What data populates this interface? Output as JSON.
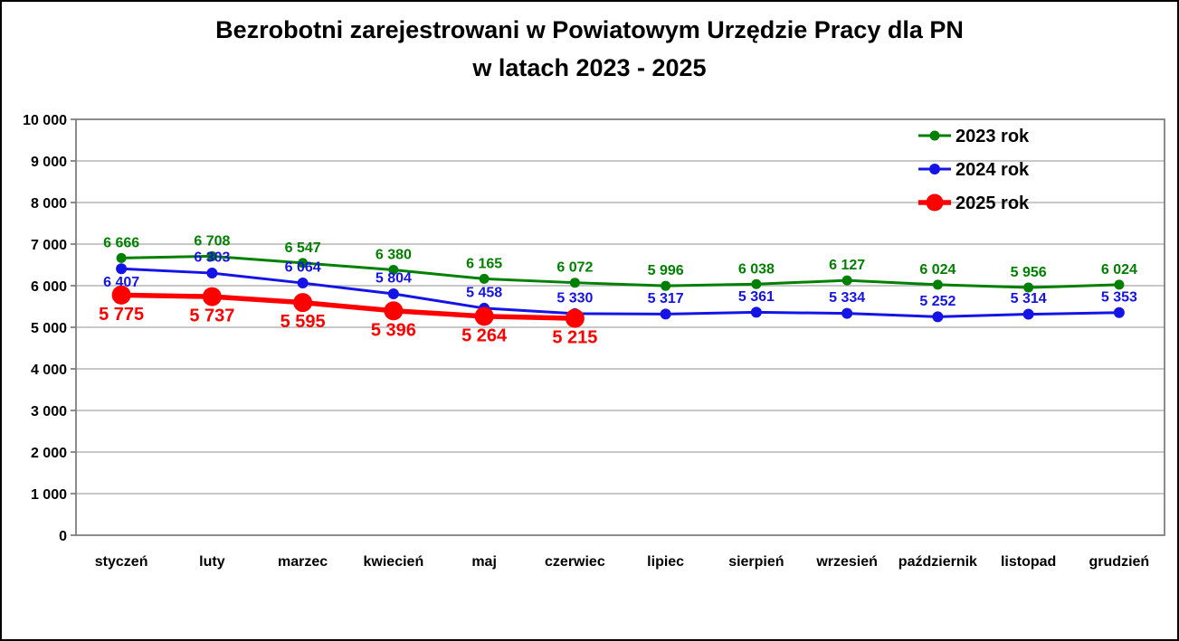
{
  "title": {
    "line1": "Bezrobotni zarejestrowani w Powiatowym Urzędzie Pracy dla PN",
    "line2": "w latach 2023 - 2025"
  },
  "chart_data": {
    "type": "line",
    "title": "Bezrobotni zarejestrowani w Powiatowym Urzędzie Pracy dla PN w latach 2023 - 2025",
    "categories": [
      "styczeń",
      "luty",
      "marzec",
      "kwiecień",
      "maj",
      "czerwiec",
      "lipiec",
      "sierpień",
      "wrzesień",
      "październik",
      "listopad",
      "grudzień"
    ],
    "series": [
      {
        "name": "2023 rok",
        "color": "#008000",
        "values": [
          6666,
          6708,
          6547,
          6380,
          6165,
          6072,
          5996,
          6038,
          6127,
          6024,
          5956,
          6024
        ],
        "labels": [
          "6 666",
          "6 708",
          "6 547",
          "6 380",
          "6 165",
          "6 072",
          "5 996",
          "6 038",
          "6 127",
          "6 024",
          "5 956",
          "6 024"
        ],
        "label_position": "above",
        "label_overrides": {},
        "marker_radius": 5.5,
        "line_width": 3,
        "label_font_size": 16
      },
      {
        "name": "2024 rok",
        "color": "#1414E6",
        "values": [
          6407,
          6303,
          6064,
          5804,
          5458,
          5330,
          5317,
          5361,
          5334,
          5252,
          5314,
          5353
        ],
        "labels": [
          "6 407",
          "6 303",
          "6 064",
          "5 804",
          "5 458",
          "5 330",
          "5 317",
          "5 361",
          "5 334",
          "5 252",
          "5 314",
          "5 353"
        ],
        "label_position": "above",
        "label_overrides": {
          "0": "below"
        },
        "marker_radius": 6,
        "line_width": 3,
        "label_font_size": 16
      },
      {
        "name": "2025 rok",
        "color": "#FF0000",
        "values": [
          5775,
          5737,
          5595,
          5396,
          5264,
          5215
        ],
        "labels": [
          "5 775",
          "5 737",
          "5 595",
          "5 396",
          "5 264",
          "5 215"
        ],
        "label_position": "below",
        "label_overrides": {},
        "marker_radius": 10.5,
        "line_width": 5.5,
        "label_font_size": 20
      }
    ],
    "ylim": [
      0,
      10000
    ],
    "ytick_step": 1000,
    "ytick_labels": [
      "0",
      "1 000",
      "2 000",
      "3 000",
      "4 000",
      "5 000",
      "6 000",
      "7 000",
      "8 000",
      "9 000",
      "10 000"
    ],
    "grid": true,
    "legend_position": "top-right",
    "legend_labels": [
      "2023 rok",
      "2024 rok",
      "2025 rok"
    ],
    "grid_color": "#A6A6A6",
    "axis_color": "#7F7F7F",
    "text_color": "#000000",
    "background_color": "#FFFFFF",
    "border_color": "#000000"
  }
}
